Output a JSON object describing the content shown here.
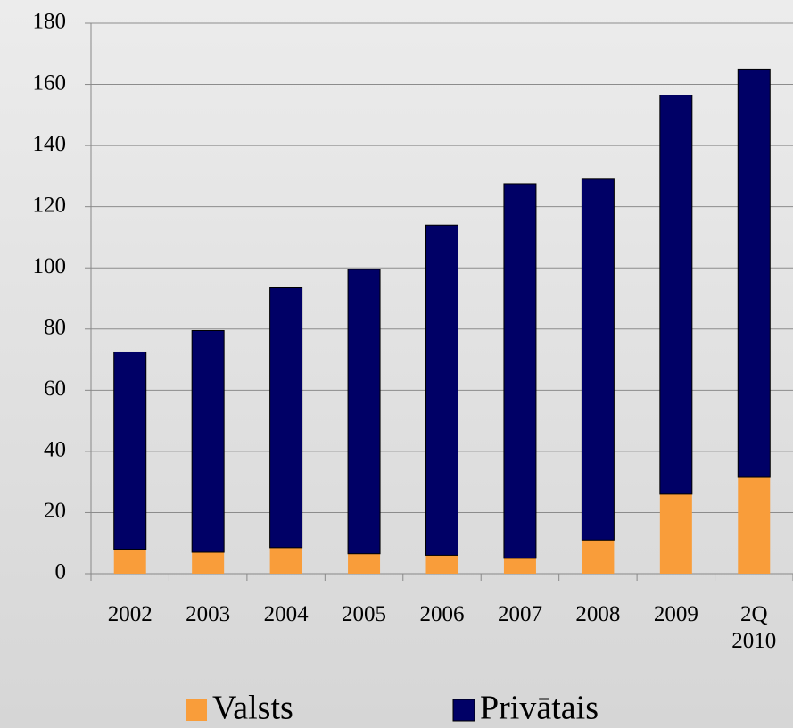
{
  "chart_data": {
    "type": "stacked_bar",
    "categories": [
      "2002",
      "2003",
      "2004",
      "2005",
      "2006",
      "2007",
      "2008",
      "2009",
      "2Q 2010"
    ],
    "series": [
      {
        "name": "Valsts",
        "color": "#f99d3a",
        "values": [
          8,
          7,
          8.5,
          6.5,
          6,
          5,
          11,
          26,
          31.5
        ]
      },
      {
        "name": "Privātais",
        "color": "#000066",
        "values": [
          64.5,
          72.5,
          85,
          93,
          108,
          122.5,
          118,
          130.5,
          133.5
        ]
      }
    ],
    "ylim": [
      0,
      180
    ],
    "yticks": [
      0,
      20,
      40,
      60,
      80,
      100,
      120,
      140,
      160,
      180
    ],
    "grid": true,
    "legend": "bottom"
  }
}
